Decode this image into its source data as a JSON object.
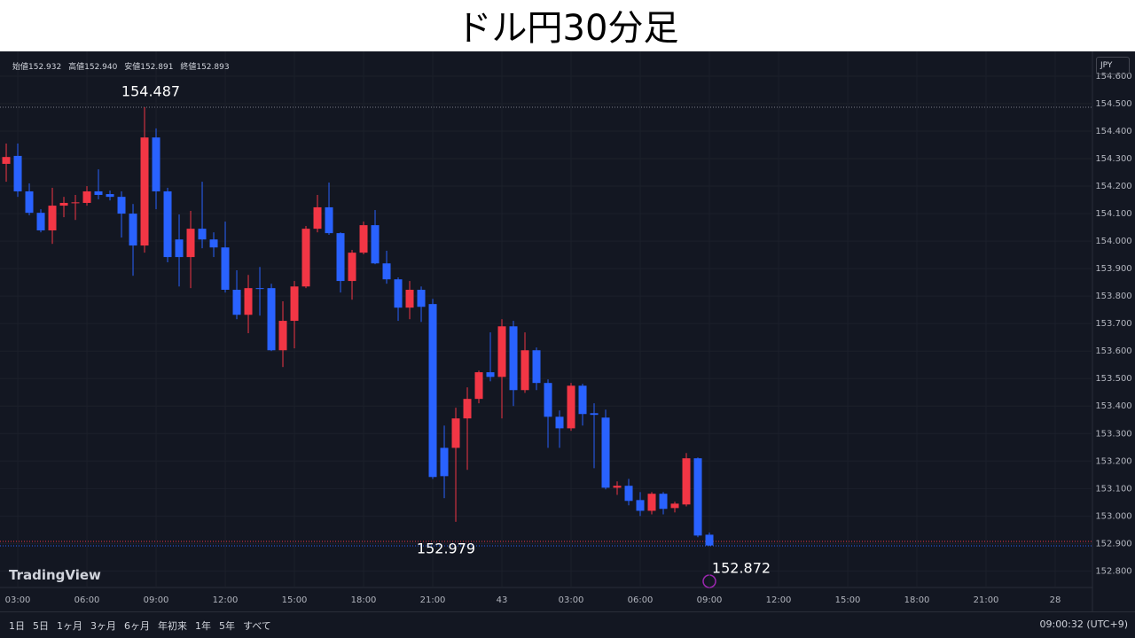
{
  "title": "ドル円30分足",
  "header": {
    "ohlc": [
      {
        "label": "始値",
        "value": "152.932"
      },
      {
        "label": "高値",
        "value": "152.940"
      },
      {
        "label": "安値",
        "value": "152.891"
      },
      {
        "label": "終値",
        "value": "152.893"
      }
    ]
  },
  "currency": "JPY",
  "logo": "TradingView",
  "toolbar": {
    "ranges": [
      "1日",
      "5日",
      "1ヶ月",
      "3ヶ月",
      "6ヶ月",
      "年初来",
      "1年",
      "5年",
      "すべて"
    ],
    "clock": "09:00:32 (UTC+9)"
  },
  "annotations": [
    {
      "text": "154.487"
    },
    {
      "text": "152.979"
    },
    {
      "text": "152.872"
    }
  ],
  "chart_data": {
    "type": "candlestick",
    "up_color": "#f23645",
    "down_color": "#2962ff",
    "grid": true,
    "x": [
      0,
      1,
      2,
      3,
      4,
      5,
      6,
      7,
      8,
      9,
      10,
      11,
      12,
      13,
      14,
      15,
      16,
      17,
      18,
      19,
      20,
      21,
      22,
      23,
      24,
      25,
      26,
      27,
      28,
      29,
      30,
      31,
      32,
      33,
      34,
      35,
      36,
      37,
      38,
      39,
      40,
      41,
      42,
      43,
      44,
      45,
      46,
      47,
      48,
      49,
      50,
      51,
      52,
      53,
      54,
      55,
      56,
      57,
      58,
      59,
      60,
      61
    ],
    "open": [
      154.281,
      154.31,
      154.181,
      154.103,
      154.039,
      154.129,
      154.139,
      154.139,
      154.181,
      154.171,
      154.161,
      154.1,
      153.984,
      154.377,
      154.181,
      154.006,
      153.942,
      154.045,
      154.006,
      153.977,
      153.823,
      153.732,
      153.829,
      153.829,
      153.603,
      153.71,
      153.835,
      154.045,
      154.123,
      154.029,
      153.855,
      153.958,
      154.058,
      153.919,
      153.861,
      153.758,
      153.823,
      153.771,
      153.248,
      153.248,
      153.355,
      153.426,
      153.523,
      153.506,
      153.69,
      153.458,
      153.603,
      153.484,
      153.361,
      153.319,
      153.474,
      153.374,
      153.358,
      153.103,
      153.11,
      153.058,
      153.019,
      153.081,
      153.029,
      153.042,
      153.21,
      152.932
    ],
    "high": [
      154.355,
      154.355,
      154.21,
      154.116,
      154.194,
      154.161,
      154.168,
      154.2,
      154.261,
      154.184,
      154.181,
      154.135,
      154.487,
      154.41,
      154.194,
      154.097,
      154.11,
      154.216,
      154.032,
      154.071,
      153.894,
      153.877,
      153.906,
      153.845,
      153.781,
      153.855,
      154.055,
      154.168,
      154.213,
      154.032,
      153.968,
      154.071,
      154.113,
      153.965,
      153.868,
      153.855,
      153.835,
      153.79,
      153.329,
      153.394,
      153.468,
      153.529,
      153.668,
      153.716,
      153.71,
      153.668,
      153.613,
      153.497,
      153.384,
      153.484,
      153.481,
      153.41,
      153.387,
      153.126,
      153.135,
      153.087,
      153.087,
      153.087,
      153.052,
      153.229,
      153.213,
      152.94
    ],
    "low": [
      154.216,
      154.161,
      154.094,
      154.032,
      153.99,
      154.087,
      154.077,
      154.129,
      154.152,
      154.148,
      154.013,
      153.874,
      153.958,
      154.116,
      153.923,
      153.835,
      153.829,
      153.974,
      153.942,
      153.813,
      153.716,
      153.665,
      153.729,
      153.6,
      153.542,
      153.61,
      153.829,
      154.032,
      154.023,
      153.813,
      153.787,
      153.952,
      153.916,
      153.845,
      153.71,
      153.716,
      153.706,
      153.135,
      153.065,
      152.979,
      153.168,
      153.41,
      153.49,
      153.355,
      153.4,
      153.448,
      153.458,
      153.248,
      153.248,
      153.31,
      153.329,
      153.174,
      153.097,
      153.077,
      153.039,
      153.0,
      153.006,
      153.006,
      153.013,
      153.035,
      152.923,
      152.891
    ],
    "close": [
      154.306,
      154.181,
      154.103,
      154.039,
      154.129,
      154.139,
      154.141,
      154.181,
      154.168,
      154.161,
      154.1,
      153.984,
      154.377,
      154.181,
      153.942,
      153.942,
      154.045,
      154.006,
      153.977,
      153.823,
      153.732,
      153.829,
      153.826,
      153.603,
      153.71,
      153.835,
      154.045,
      154.123,
      154.029,
      153.855,
      153.958,
      154.058,
      153.919,
      153.861,
      153.758,
      153.823,
      153.761,
      153.142,
      153.145,
      153.355,
      153.426,
      153.523,
      153.506,
      153.69,
      153.458,
      153.603,
      153.484,
      153.361,
      153.319,
      153.474,
      153.371,
      153.368,
      153.103,
      153.11,
      153.055,
      153.019,
      153.081,
      153.026,
      153.045,
      153.21,
      152.929,
      152.893
    ],
    "xlim": [
      -0.54,
      94.23
    ],
    "xticks": [
      {
        "value": 1,
        "label": "03:00"
      },
      {
        "value": 7,
        "label": "06:00"
      },
      {
        "value": 13,
        "label": "09:00"
      },
      {
        "value": 19,
        "label": "12:00"
      },
      {
        "value": 25,
        "label": "15:00"
      },
      {
        "value": 31,
        "label": "18:00"
      },
      {
        "value": 37,
        "label": "21:00"
      },
      43,
      {
        "value": 49,
        "label": "03:00"
      },
      {
        "value": 55,
        "label": "06:00"
      },
      {
        "value": 61,
        "label": "09:00"
      },
      {
        "value": 67,
        "label": "12:00"
      },
      {
        "value": 73,
        "label": "15:00"
      },
      {
        "value": 79,
        "label": "18:00"
      },
      {
        "value": 85,
        "label": "21:00"
      },
      {
        "value": 91,
        "label": "28"
      }
    ],
    "ylim": [
      152.74,
      154.674
    ],
    "yticks": [
      {
        "value": 152.8,
        "label": "152.800"
      },
      {
        "value": 152.9,
        "label": "152.900"
      },
      {
        "value": 153.0,
        "label": "153.000"
      },
      {
        "value": 153.1,
        "label": "153.100"
      },
      {
        "value": 153.2,
        "label": "153.200"
      },
      {
        "value": 153.3,
        "label": "153.300"
      },
      {
        "value": 153.4,
        "label": "153.400"
      },
      {
        "value": 153.5,
        "label": "153.500"
      },
      {
        "value": 153.6,
        "label": "153.600"
      },
      {
        "value": 153.7,
        "label": "153.700"
      },
      {
        "value": 153.8,
        "label": "153.800"
      },
      {
        "value": 153.9,
        "label": "153.900"
      },
      {
        "value": 154.0,
        "label": "154.000"
      },
      {
        "value": 154.1,
        "label": "154.100"
      },
      {
        "value": 154.2,
        "label": "154.200"
      },
      {
        "value": 154.3,
        "label": "154.300"
      },
      {
        "value": 154.4,
        "label": "154.400"
      },
      {
        "value": 154.5,
        "label": "154.500"
      },
      {
        "value": 154.6,
        "label": "154.600"
      }
    ]
  }
}
